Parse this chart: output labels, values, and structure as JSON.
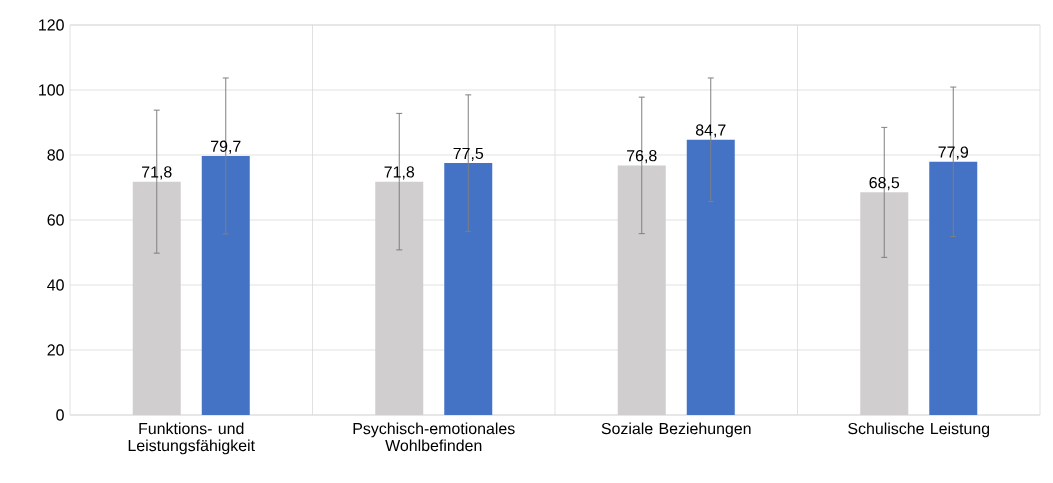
{
  "chart_data": {
    "type": "bar",
    "categories": [
      "Funktions- und Leistungsfähigkeit",
      "Psychisch-emotionales Wohlbefinden",
      "Soziale Beziehungen",
      "Schulische Leistung"
    ],
    "series": [
      {
        "color": "#d0cece",
        "values": [
          71.8,
          71.8,
          76.8,
          68.5
        ],
        "value_labels": [
          "71,8",
          "71,8",
          "76,8",
          "68,5"
        ],
        "errors": [
          22,
          21,
          21,
          20
        ]
      },
      {
        "color": "#4472c4",
        "values": [
          79.7,
          77.5,
          84.7,
          77.9
        ],
        "value_labels": [
          "79,7",
          "77,5",
          "84,7",
          "77,9"
        ],
        "errors": [
          24,
          21,
          19,
          23
        ]
      }
    ],
    "ylim": [
      0,
      120
    ],
    "yticks": [
      0,
      20,
      40,
      60,
      80,
      100,
      120
    ],
    "grid": true
  }
}
